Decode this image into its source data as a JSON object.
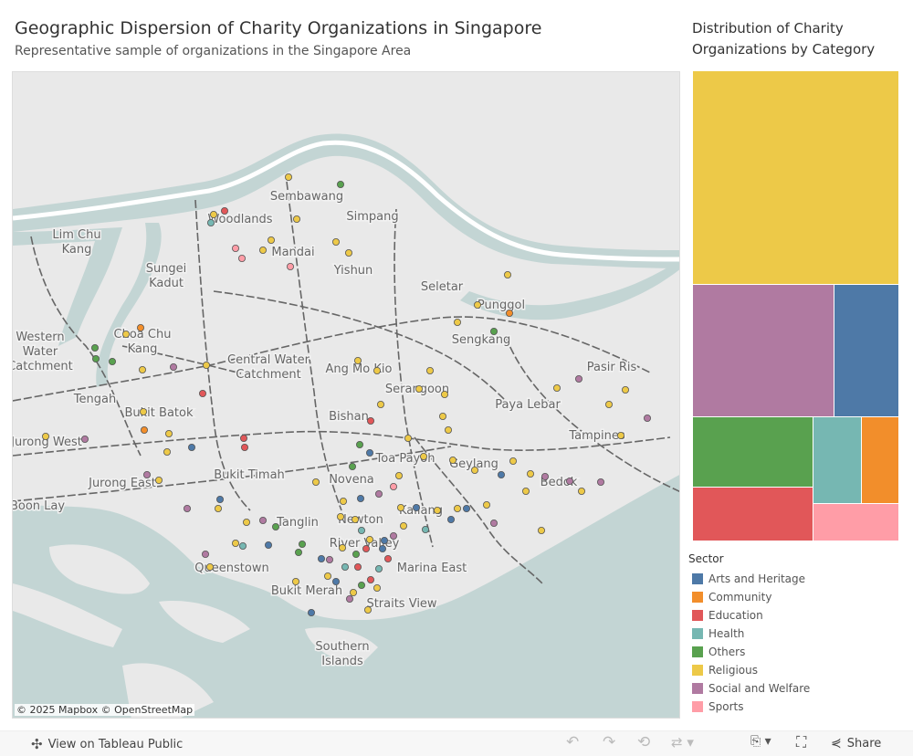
{
  "header": {
    "title": "Geographic Dispersion of Charity Organizations in Singapore",
    "subtitle": "Representative sample of organizations in the Singapore Area"
  },
  "treemap": {
    "title_line1": "Distribution of Charity",
    "title_line2": "Organizations by Category"
  },
  "legend": {
    "title": "Sector"
  },
  "sectors": [
    {
      "name": "Arts and Heritage",
      "color": "#4e79a7",
      "share": 8.8
    },
    {
      "name": "Community",
      "color": "#f28e2b",
      "share": 3.3
    },
    {
      "name": "Education",
      "color": "#e15759",
      "share": 6.6
    },
    {
      "name": "Health",
      "color": "#76b7b2",
      "share": 4.2
    },
    {
      "name": "Others",
      "color": "#59a14f",
      "share": 8.6
    },
    {
      "name": "Religious",
      "color": "#edc948",
      "share": 45.7
    },
    {
      "name": "Social and Welfare",
      "color": "#b07aa1",
      "share": 19.4
    },
    {
      "name": "Sports",
      "color": "#ff9da7",
      "share": 3.3
    }
  ],
  "map": {
    "attribution": "© 2025 Mapbox  © OpenStreetMap",
    "places": [
      "Sembawang",
      "Woodlands",
      "Simpang",
      "Lim Chu Kang",
      "Mandai",
      "Yishun",
      "Sungei Kadut",
      "Seletar",
      "Punggol",
      "Sengkang",
      "Western Water Catchment",
      "Choa Chu Kang",
      "Central Water Catchment",
      "Ang Mo Kio",
      "Pasir Ris",
      "Tengah",
      "Serangoon",
      "Paya Lebar",
      "Bukit Batok",
      "Bishan",
      "Tampines",
      "Jurong West",
      "Toa Payoh",
      "Geylang",
      "Bedok",
      "Bukit Timah",
      "Jurong East",
      "Novena",
      "Boon Lay",
      "Kallang",
      "Tanglin",
      "Newton",
      "River Valley",
      "Queenstown",
      "Marina East",
      "Bukit Merah",
      "Straits View",
      "Southern Islands"
    ],
    "points": [
      [
        103.7575,
        1.4228,
        5
      ],
      [
        103.786,
        1.4196,
        4
      ],
      [
        103.7225,
        1.408,
        2
      ],
      [
        103.7165,
        1.4064,
        5
      ],
      [
        103.715,
        1.4028,
        3
      ],
      [
        103.762,
        1.4044,
        5
      ],
      [
        103.748,
        1.3952,
        5
      ],
      [
        103.7285,
        1.3916,
        7
      ],
      [
        103.7435,
        1.3908,
        5
      ],
      [
        103.732,
        1.3872,
        7
      ],
      [
        103.7835,
        1.3944,
        5
      ],
      [
        103.7905,
        1.3896,
        5
      ],
      [
        103.7585,
        1.3836,
        7
      ],
      [
        103.8775,
        1.38,
        5
      ],
      [
        103.861,
        1.3668,
        5
      ],
      [
        103.85,
        1.3592,
        5
      ],
      [
        103.87,
        1.3552,
        4
      ],
      [
        103.8785,
        1.3632,
        1
      ],
      [
        103.6515,
        1.348,
        4
      ],
      [
        103.652,
        1.3432,
        4
      ],
      [
        103.661,
        1.342,
        4
      ],
      [
        103.6765,
        1.3568,
        1
      ],
      [
        103.6685,
        1.354,
        5
      ],
      [
        103.6775,
        1.3384,
        5
      ],
      [
        103.6945,
        1.3396,
        6
      ],
      [
        103.7125,
        1.3404,
        5
      ],
      [
        103.7105,
        1.328,
        2
      ],
      [
        103.7955,
        1.3424,
        5
      ],
      [
        103.806,
        1.338,
        5
      ],
      [
        103.835,
        1.338,
        5
      ],
      [
        103.829,
        1.33,
        5
      ],
      [
        103.843,
        1.3276,
        5
      ],
      [
        103.842,
        1.318,
        5
      ],
      [
        103.845,
        1.312,
        5
      ],
      [
        103.9165,
        1.3344,
        6
      ],
      [
        103.9045,
        1.3304,
        5
      ],
      [
        103.933,
        1.3232,
        5
      ],
      [
        103.942,
        1.3296,
        5
      ],
      [
        103.954,
        1.3172,
        6
      ],
      [
        103.9395,
        1.3096,
        5
      ],
      [
        103.678,
        1.32,
        5
      ],
      [
        103.6785,
        1.312,
        1
      ],
      [
        103.692,
        1.3104,
        5
      ],
      [
        103.6245,
        1.3092,
        5
      ],
      [
        103.646,
        1.308,
        6
      ],
      [
        103.7045,
        1.3044,
        0
      ],
      [
        103.691,
        1.3024,
        5
      ],
      [
        103.733,
        1.3084,
        2
      ],
      [
        103.7335,
        1.3044,
        2
      ],
      [
        103.808,
        1.3232,
        5
      ],
      [
        103.8025,
        1.316,
        2
      ],
      [
        103.7965,
        1.3056,
        4
      ],
      [
        103.802,
        1.302,
        0
      ],
      [
        103.823,
        1.3084,
        5
      ],
      [
        103.8315,
        1.3004,
        5
      ],
      [
        103.7925,
        1.296,
        4
      ],
      [
        103.818,
        1.292,
        5
      ],
      [
        103.8475,
        1.2988,
        5
      ],
      [
        103.8595,
        1.2944,
        5
      ],
      [
        103.874,
        1.2924,
        0
      ],
      [
        103.8805,
        1.2984,
        5
      ],
      [
        103.89,
        1.2928,
        5
      ],
      [
        103.898,
        1.2916,
        6
      ],
      [
        103.9115,
        1.2896,
        6
      ],
      [
        103.9285,
        1.2892,
        6
      ],
      [
        103.918,
        1.2852,
        5
      ],
      [
        103.8875,
        1.2852,
        5
      ],
      [
        103.6865,
        1.29,
        5
      ],
      [
        103.68,
        1.2924,
        6
      ],
      [
        103.72,
        1.2816,
        0
      ],
      [
        103.719,
        1.2776,
        5
      ],
      [
        103.702,
        1.2776,
        6
      ],
      [
        103.7345,
        1.2716,
        5
      ],
      [
        103.7435,
        1.2724,
        6
      ],
      [
        103.7505,
        1.2696,
        4
      ],
      [
        103.7285,
        1.2624,
        5
      ],
      [
        103.7325,
        1.2612,
        3
      ],
      [
        103.7465,
        1.2616,
        0
      ],
      [
        103.712,
        1.2576,
        6
      ],
      [
        103.7145,
        1.252,
        5
      ],
      [
        103.7725,
        1.2892,
        5
      ],
      [
        103.7875,
        1.2808,
        5
      ],
      [
        103.797,
        1.282,
        0
      ],
      [
        103.807,
        1.284,
        6
      ],
      [
        103.815,
        1.2872,
        7
      ],
      [
        103.819,
        1.278,
        5
      ],
      [
        103.8275,
        1.278,
        0
      ],
      [
        103.839,
        1.2768,
        5
      ],
      [
        103.8465,
        1.2728,
        0
      ],
      [
        103.85,
        1.2776,
        5
      ],
      [
        103.855,
        1.2776,
        0
      ],
      [
        103.866,
        1.2792,
        5
      ],
      [
        103.87,
        1.2712,
        6
      ],
      [
        103.896,
        1.268,
        5
      ],
      [
        103.8325,
        1.2684,
        3
      ],
      [
        103.8205,
        1.27,
        5
      ],
      [
        103.815,
        1.2656,
        6
      ],
      [
        103.81,
        1.2636,
        0
      ],
      [
        103.802,
        1.264,
        5
      ],
      [
        103.7975,
        1.268,
        3
      ],
      [
        103.787,
        1.2604,
        5
      ],
      [
        103.7945,
        1.2576,
        4
      ],
      [
        103.8,
        1.26,
        2
      ],
      [
        103.809,
        1.26,
        0
      ],
      [
        103.812,
        1.2556,
        2
      ],
      [
        103.807,
        1.2512,
        3
      ],
      [
        103.8025,
        1.2464,
        2
      ],
      [
        103.7975,
        1.244,
        4
      ],
      [
        103.793,
        1.2408,
        5
      ],
      [
        103.806,
        1.2428,
        5
      ],
      [
        103.7755,
        1.2556,
        0
      ],
      [
        103.78,
        1.2552,
        6
      ],
      [
        103.765,
        1.262,
        4
      ],
      [
        103.763,
        1.2584,
        4
      ],
      [
        103.7615,
        1.2456,
        5
      ],
      [
        103.779,
        1.248,
        5
      ],
      [
        103.7835,
        1.2456,
        0
      ],
      [
        103.7885,
        1.252,
        3
      ],
      [
        103.7955,
        1.252,
        2
      ],
      [
        103.77,
        1.232,
        0
      ],
      [
        103.801,
        1.2332,
        5
      ],
      [
        103.791,
        1.238,
        6
      ],
      [
        103.786,
        1.274,
        5
      ],
      [
        103.794,
        1.2728,
        5
      ]
    ]
  },
  "toolbar": {
    "view_label": "View on Tableau Public",
    "share_label": "Share"
  }
}
